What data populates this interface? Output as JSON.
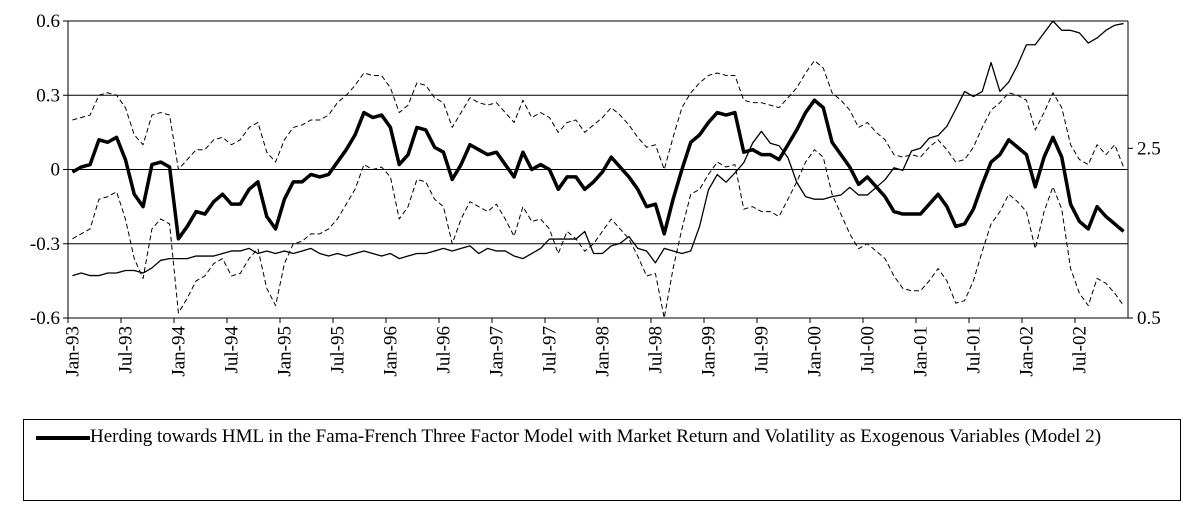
{
  "chart_data": {
    "type": "line",
    "categories": [
      "Jan-93",
      null,
      null,
      null,
      null,
      null,
      "Jul-93",
      null,
      null,
      null,
      null,
      null,
      "Jan-94",
      null,
      null,
      null,
      null,
      null,
      "Jul-94",
      null,
      null,
      null,
      null,
      null,
      "Jan-95",
      null,
      null,
      null,
      null,
      null,
      "Jul-95",
      null,
      null,
      null,
      null,
      null,
      "Jan-96",
      null,
      null,
      null,
      null,
      null,
      "Jul-96",
      null,
      null,
      null,
      null,
      null,
      "Jan-97",
      null,
      null,
      null,
      null,
      null,
      "Jul-97",
      null,
      null,
      null,
      null,
      null,
      "Jan-98",
      null,
      null,
      null,
      null,
      null,
      "Jul-98",
      null,
      null,
      null,
      null,
      null,
      "Jan-99",
      null,
      null,
      null,
      null,
      null,
      "Jul-99",
      null,
      null,
      null,
      null,
      null,
      "Jan-00",
      null,
      null,
      null,
      null,
      null,
      "Jul-00",
      null,
      null,
      null,
      null,
      null,
      "Jan-01",
      null,
      null,
      null,
      null,
      null,
      "Jul-01",
      null,
      null,
      null,
      null,
      null,
      "Jan-02",
      null,
      null,
      null,
      null,
      null,
      "Jul-02",
      null,
      null,
      null,
      null,
      null
    ],
    "ylim": [
      -0.6,
      0.6
    ],
    "yticks": [
      -0.6,
      -0.3,
      0,
      0.3,
      0.6
    ],
    "y2lim": [
      0.5,
      4
    ],
    "y2ticks": [
      0.5,
      2.5
    ],
    "grid": true,
    "series": [
      {
        "name": "Herding towards HML in the Fama-French Three Factor Model with Market Return and Volatility as Exogenous Variables (Model 2)",
        "color": "#000000",
        "line_width": 3.5,
        "dashed": false,
        "values": [
          -0.01,
          0.01,
          0.02,
          0.12,
          0.11,
          0.13,
          0.04,
          -0.1,
          -0.15,
          0.02,
          0.03,
          0.01,
          -0.28,
          -0.23,
          -0.17,
          -0.18,
          -0.13,
          -0.1,
          -0.14,
          -0.14,
          -0.08,
          -0.05,
          -0.19,
          -0.24,
          -0.12,
          -0.05,
          -0.05,
          -0.02,
          -0.03,
          -0.02,
          0.03,
          0.08,
          0.14,
          0.23,
          0.21,
          0.22,
          0.17,
          0.02,
          0.06,
          0.17,
          0.16,
          0.09,
          0.07,
          -0.04,
          0.02,
          0.1,
          0.08,
          0.06,
          0.07,
          0.02,
          -0.03,
          0.07,
          0,
          0.02,
          0,
          -0.08,
          -0.03,
          -0.03,
          -0.08,
          -0.05,
          -0.01,
          0.05,
          0.01,
          -0.03,
          -0.08,
          -0.15,
          -0.14,
          -0.26,
          -0.12,
          0,
          0.11,
          0.14,
          0.19,
          0.23,
          0.22,
          0.23,
          0.07,
          0.08,
          0.06,
          0.06,
          0.04,
          0.1,
          0.16,
          0.23,
          0.28,
          0.25,
          0.11,
          0.06,
          0.01,
          -0.06,
          -0.03,
          -0.07,
          -0.11,
          -0.17,
          -0.18,
          -0.18,
          -0.18,
          -0.14,
          -0.1,
          -0.15,
          -0.23,
          -0.22,
          -0.16,
          -0.06,
          0.03,
          0.06,
          0.12,
          0.09,
          0.06,
          -0.07,
          0.05,
          0.13,
          0.05,
          -0.14,
          -0.21,
          -0.24,
          -0.15,
          -0.19,
          -0.22,
          -0.25
        ]
      },
      {
        "color": "#000000",
        "line_width": 1,
        "dashed": true,
        "values": [
          0.2,
          0.21,
          0.22,
          0.3,
          0.31,
          0.3,
          0.25,
          0.14,
          0.1,
          0.22,
          0.23,
          0.22,
          0,
          0.04,
          0.08,
          0.08,
          0.12,
          0.13,
          0.1,
          0.12,
          0.17,
          0.19,
          0.07,
          0.03,
          0.12,
          0.17,
          0.18,
          0.2,
          0.2,
          0.22,
          0.27,
          0.3,
          0.34,
          0.39,
          0.38,
          0.38,
          0.33,
          0.23,
          0.26,
          0.35,
          0.34,
          0.29,
          0.27,
          0.17,
          0.23,
          0.29,
          0.27,
          0.26,
          0.27,
          0.23,
          0.19,
          0.28,
          0.21,
          0.23,
          0.21,
          0.15,
          0.19,
          0.2,
          0.15,
          0.18,
          0.21,
          0.25,
          0.22,
          0.18,
          0.13,
          0.09,
          0.1,
          0,
          0.13,
          0.25,
          0.31,
          0.35,
          0.38,
          0.39,
          0.38,
          0.38,
          0.28,
          0.27,
          0.27,
          0.26,
          0.25,
          0.29,
          0.33,
          0.39,
          0.44,
          0.41,
          0.31,
          0.28,
          0.24,
          0.17,
          0.19,
          0.15,
          0.12,
          0.06,
          0.05,
          0.06,
          0.05,
          0.09,
          0.12,
          0.08,
          0.03,
          0.04,
          0.09,
          0.17,
          0.24,
          0.27,
          0.31,
          0.3,
          0.28,
          0.16,
          0.23,
          0.31,
          0.25,
          0.1,
          0.04,
          0.02,
          0.1,
          0.06,
          0.1,
          0.01
        ]
      },
      {
        "color": "#000000",
        "line_width": 1,
        "dashed": true,
        "values": [
          -0.28,
          -0.26,
          -0.24,
          -0.12,
          -0.11,
          -0.09,
          -0.2,
          -0.36,
          -0.44,
          -0.24,
          -0.2,
          -0.22,
          -0.58,
          -0.52,
          -0.45,
          -0.43,
          -0.38,
          -0.36,
          -0.43,
          -0.42,
          -0.36,
          -0.32,
          -0.48,
          -0.55,
          -0.38,
          -0.3,
          -0.29,
          -0.26,
          -0.26,
          -0.24,
          -0.2,
          -0.14,
          -0.08,
          0.02,
          0,
          0.01,
          -0.03,
          -0.2,
          -0.15,
          -0.04,
          -0.05,
          -0.12,
          -0.15,
          -0.3,
          -0.2,
          -0.13,
          -0.15,
          -0.17,
          -0.14,
          -0.2,
          -0.27,
          -0.15,
          -0.21,
          -0.2,
          -0.24,
          -0.34,
          -0.25,
          -0.28,
          -0.33,
          -0.3,
          -0.25,
          -0.2,
          -0.24,
          -0.28,
          -0.35,
          -0.43,
          -0.42,
          -0.6,
          -0.4,
          -0.24,
          -0.1,
          -0.08,
          -0.02,
          0.03,
          0.01,
          0.02,
          -0.16,
          -0.15,
          -0.17,
          -0.17,
          -0.19,
          -0.12,
          -0.05,
          0.03,
          0.08,
          0.05,
          -0.1,
          -0.18,
          -0.26,
          -0.32,
          -0.3,
          -0.33,
          -0.36,
          -0.43,
          -0.48,
          -0.49,
          -0.49,
          -0.45,
          -0.4,
          -0.45,
          -0.54,
          -0.53,
          -0.45,
          -0.33,
          -0.22,
          -0.17,
          -0.1,
          -0.13,
          -0.17,
          -0.32,
          -0.17,
          -0.07,
          -0.16,
          -0.4,
          -0.5,
          -0.55,
          -0.44,
          -0.46,
          -0.5,
          -0.55
        ]
      },
      {
        "color": "#000000",
        "line_width": 1.3,
        "dashed": false,
        "axis": "y2",
        "values": [
          1.0,
          1.03,
          1.0,
          1.0,
          1.03,
          1.03,
          1.06,
          1.06,
          1.03,
          1.09,
          1.18,
          1.2,
          1.2,
          1.2,
          1.23,
          1.23,
          1.23,
          1.26,
          1.29,
          1.29,
          1.32,
          1.26,
          1.29,
          1.26,
          1.29,
          1.26,
          1.29,
          1.32,
          1.26,
          1.23,
          1.26,
          1.23,
          1.26,
          1.29,
          1.26,
          1.23,
          1.26,
          1.2,
          1.23,
          1.26,
          1.26,
          1.29,
          1.32,
          1.29,
          1.32,
          1.35,
          1.26,
          1.32,
          1.29,
          1.29,
          1.23,
          1.2,
          1.26,
          1.32,
          1.43,
          1.43,
          1.43,
          1.43,
          1.52,
          1.26,
          1.26,
          1.35,
          1.38,
          1.46,
          1.32,
          1.29,
          1.15,
          1.32,
          1.29,
          1.26,
          1.29,
          1.58,
          2.01,
          2.19,
          2.1,
          2.21,
          2.33,
          2.56,
          2.7,
          2.56,
          2.53,
          2.39,
          2.1,
          1.93,
          1.9,
          1.9,
          1.93,
          1.95,
          2.04,
          1.95,
          1.95,
          2.04,
          2.13,
          2.27,
          2.24,
          2.47,
          2.5,
          2.62,
          2.65,
          2.76,
          2.96,
          3.17,
          3.11,
          3.17,
          3.51,
          3.17,
          3.28,
          3.48,
          3.72,
          3.72,
          3.86,
          4.0,
          3.89,
          3.89,
          3.86,
          3.74,
          3.8,
          3.89,
          3.95,
          3.97
        ]
      }
    ]
  }
}
